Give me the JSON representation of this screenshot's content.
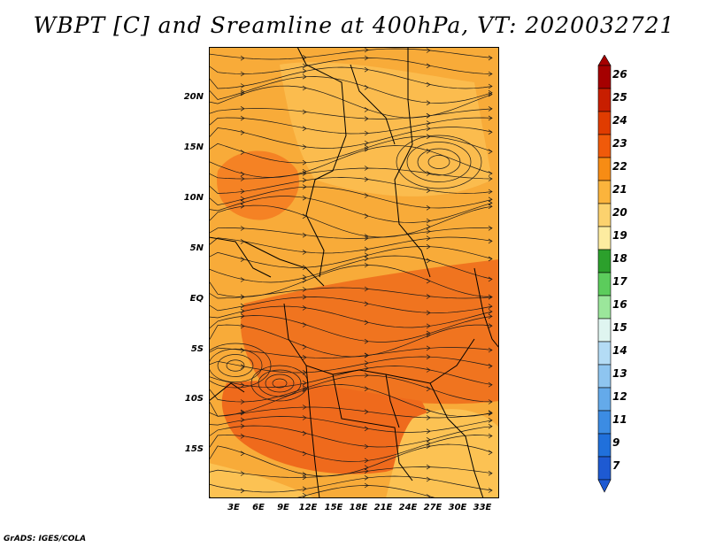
{
  "title": "WBPT [C] and Sreamline at 400hPa, VT: 2020032721",
  "credit": "GrADS: IGES/COLA",
  "lat_labels": [
    "20N",
    "15N",
    "10N",
    "5N",
    "EQ",
    "5S",
    "10S",
    "15S"
  ],
  "lon_labels": [
    "3E",
    "6E",
    "9E",
    "12E",
    "15E",
    "18E",
    "21E",
    "24E",
    "27E",
    "30E",
    "33E"
  ],
  "colorbar": {
    "labels": [
      "26",
      "25",
      "24",
      "23",
      "22",
      "21",
      "20",
      "19",
      "18",
      "17",
      "16",
      "15",
      "14",
      "13",
      "12",
      "11",
      "9",
      "7"
    ],
    "colors": [
      "#a50000",
      "#c81e00",
      "#e03c00",
      "#f05a0a",
      "#f78c14",
      "#fbb43c",
      "#fcd26e",
      "#fdeca0",
      "#2ca02c",
      "#5ccc5c",
      "#9be69b",
      "#dff5f0",
      "#b4dcf5",
      "#8ec5f0",
      "#64aaea",
      "#3c8ce3",
      "#2070db",
      "#1e5ad2"
    ]
  },
  "field": {
    "background": "#f8ab39",
    "zones": [
      {
        "name": "northwest-warm-region",
        "color": "#f58224"
      },
      {
        "name": "equatorial-warm-band",
        "color": "#f0741f"
      },
      {
        "name": "southern-warm-region",
        "color": "#ef6a1c"
      },
      {
        "name": "north-cool-region",
        "color": "#fbbe52"
      },
      {
        "name": "southeast-cool-region",
        "color": "#fcc253"
      }
    ]
  }
}
